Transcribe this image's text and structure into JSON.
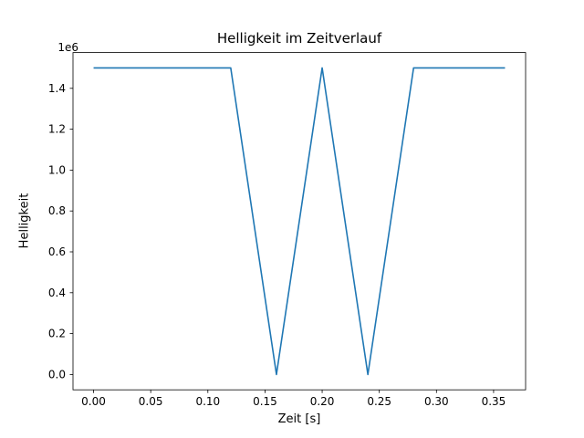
{
  "chart_data": {
    "type": "line",
    "title": "Helligkeit im Zeitverlauf",
    "xlabel": "Zeit [s]",
    "ylabel": "Helligkeit",
    "y_offset_label": "1e6",
    "x": [
      0.0,
      0.12,
      0.16,
      0.2,
      0.24,
      0.28,
      0.36
    ],
    "y": [
      1500000,
      1500000,
      0,
      1500000,
      0,
      1500000,
      1500000
    ],
    "xlim": [
      -0.018,
      0.378
    ],
    "ylim": [
      -75000,
      1575000
    ],
    "x_ticks": [
      0.0,
      0.05,
      0.1,
      0.15,
      0.2,
      0.25,
      0.3,
      0.35
    ],
    "x_tick_labels": [
      "0.00",
      "0.05",
      "0.10",
      "0.15",
      "0.20",
      "0.25",
      "0.30",
      "0.35"
    ],
    "y_ticks": [
      0,
      200000,
      400000,
      600000,
      800000,
      1000000,
      1200000,
      1400000
    ],
    "y_tick_labels": [
      "0.0",
      "0.2",
      "0.4",
      "0.6",
      "0.8",
      "1.0",
      "1.2",
      "1.4"
    ],
    "line_color": "#1f77b4",
    "axes_color": "#000000",
    "grid": false,
    "legend": null
  }
}
